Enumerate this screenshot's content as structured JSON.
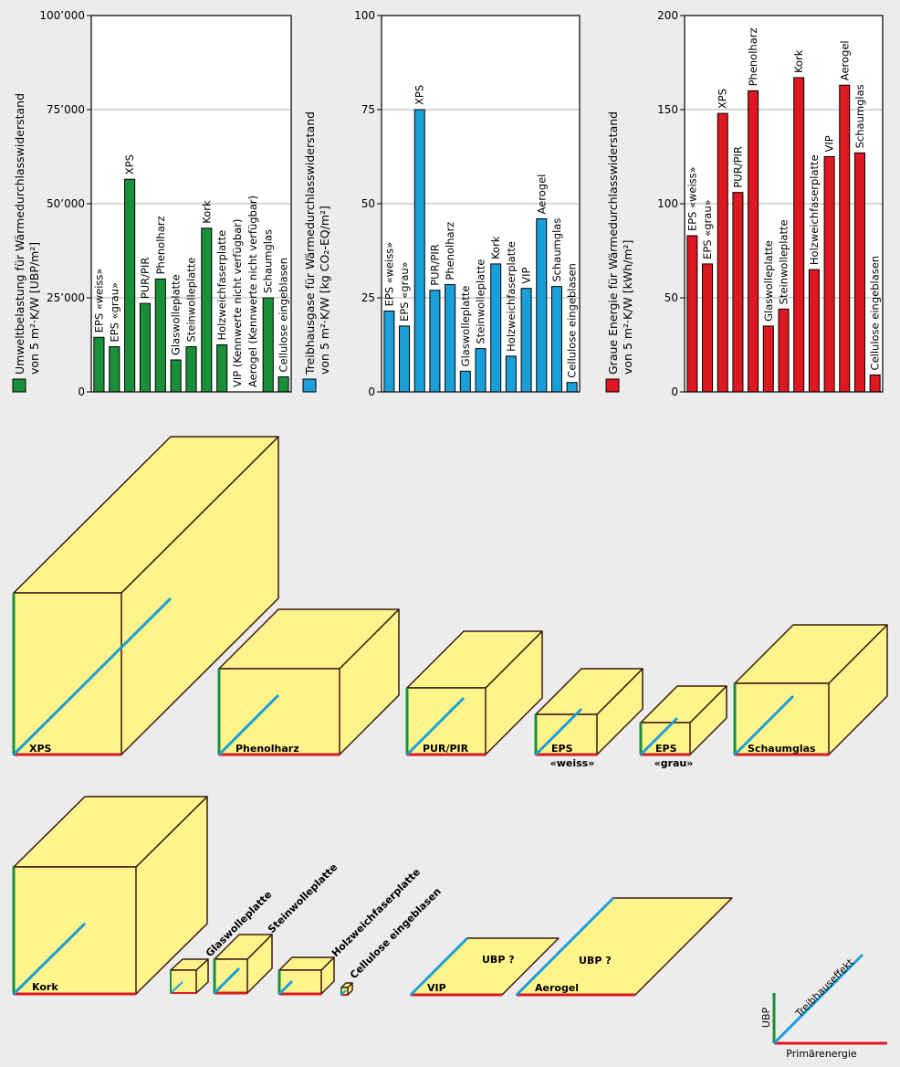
{
  "colors": {
    "umwelt": "#1a8f3a",
    "treibhaus": "#1a9fd8",
    "grau": "#dd1820",
    "box_fill": "#fff38c",
    "box_stroke": "#3a1a10",
    "background": "#ececec"
  },
  "chart_data": [
    {
      "type": "bar",
      "id": "ubp",
      "color_key": "umwelt",
      "ylabel_line1": "Umweltbelastung für Wärmedurchlasswiderstand",
      "ylabel_line2": "von 5 m²·K/W [UBP/m²]",
      "ylim": [
        0,
        100000
      ],
      "yticks": [
        0,
        25000,
        50000,
        75000,
        100000
      ],
      "ytick_labels": [
        "0",
        "25’000",
        "50’000",
        "75’000",
        "100’000"
      ],
      "categories": [
        "EPS «weiss»",
        "EPS «grau»",
        "XPS",
        "PUR/PIR",
        "Phenolharz",
        "Glaswolleplatte",
        "Steinwolleplatte",
        "Kork",
        "Holzweichfaserplatte",
        "VIP (Kennwerte nicht verfügbar)",
        "Aerogel (Kennwerte nicht verfügbar)",
        "Schaumglas",
        "Cellulose eingeblasen"
      ],
      "values": [
        14500,
        12000,
        56500,
        23500,
        30000,
        8500,
        12000,
        43500,
        12500,
        null,
        null,
        25000,
        4000
      ]
    },
    {
      "type": "bar",
      "id": "thg",
      "color_key": "treibhaus",
      "ylabel_line1": "Treibhausgase für Wärmedurchlasswiderstand",
      "ylabel_line2": "von 5 m²·K/W [kg CO₂-EQ/m²]",
      "ylim": [
        0,
        100
      ],
      "yticks": [
        0,
        25,
        50,
        75,
        100
      ],
      "ytick_labels": [
        "0",
        "25",
        "50",
        "75",
        "100"
      ],
      "categories": [
        "EPS «weiss»",
        "EPS «grau»",
        "XPS",
        "PUR/PIR",
        "Phenolharz",
        "Glaswolleplatte",
        "Steinwolleplatte",
        "Kork",
        "Holzweichfaserplatte",
        "VIP",
        "Aerogel",
        "Schaumglas",
        "Cellulose eingeblasen"
      ],
      "values": [
        21.5,
        17.5,
        75,
        27,
        28.5,
        5.5,
        11.5,
        34,
        9.5,
        27.5,
        46,
        28,
        2.5
      ]
    },
    {
      "type": "bar",
      "id": "ge",
      "color_key": "grau",
      "ylabel_line1": "Graue Energie für Wärmedurchlasswiderstand",
      "ylabel_line2": "von 5 m²·K/W [kWh/m²]",
      "ylim": [
        0,
        200
      ],
      "yticks": [
        0,
        50,
        100,
        150,
        200
      ],
      "ytick_labels": [
        "0",
        "50",
        "100",
        "150",
        "200"
      ],
      "categories": [
        "EPS «weiss»",
        "EPS «grau»",
        "XPS",
        "PUR/PIR",
        "Phenolharz",
        "Glaswolleplatte",
        "Steinwolleplatte",
        "Kork",
        "Holzweichfaserplatte",
        "VIP",
        "Aerogel",
        "Schaumglas",
        "Cellulose eingeblasen"
      ],
      "values": [
        83,
        68,
        148,
        106,
        160,
        35,
        44,
        167,
        65,
        125,
        163,
        127,
        9
      ]
    }
  ],
  "boxes": [
    {
      "name": "XPS",
      "label": [
        "XPS"
      ],
      "label_class": "xps"
    },
    {
      "name": "Phenolharz",
      "label": [
        "Phenolharz"
      ]
    },
    {
      "name": "PUR/PIR",
      "label": [
        "PUR/PIR"
      ]
    },
    {
      "name": "EPS weiss",
      "label": [
        "EPS",
        "«weiss»"
      ]
    },
    {
      "name": "EPS grau",
      "label": [
        "EPS",
        "«grau»"
      ]
    },
    {
      "name": "Schaumglas",
      "label": [
        "Schaumglas"
      ]
    },
    {
      "name": "Kork",
      "label": [
        "Kork"
      ]
    },
    {
      "name": "Glaswolleplatte",
      "label": [
        "Glaswolleplatte"
      ]
    },
    {
      "name": "Steinwolleplatte",
      "label": [
        "Steinwolleplatte"
      ]
    },
    {
      "name": "Holzweichfaserplatte",
      "label": [
        "Holzweichfaserplatte"
      ]
    },
    {
      "name": "Cellulose eingeblasen",
      "label": [
        "Cellulose eingeblasen"
      ]
    }
  ],
  "flat_boxes": [
    {
      "name": "VIP",
      "label": "VIP",
      "note": "UBP ?"
    },
    {
      "name": "Aerogel",
      "label": "Aerogel",
      "note": "UBP ?"
    }
  ],
  "legend": {
    "ubp": "UBP",
    "treibhaus": "Treibhauseffekt",
    "primaer": "Primärenergie"
  }
}
